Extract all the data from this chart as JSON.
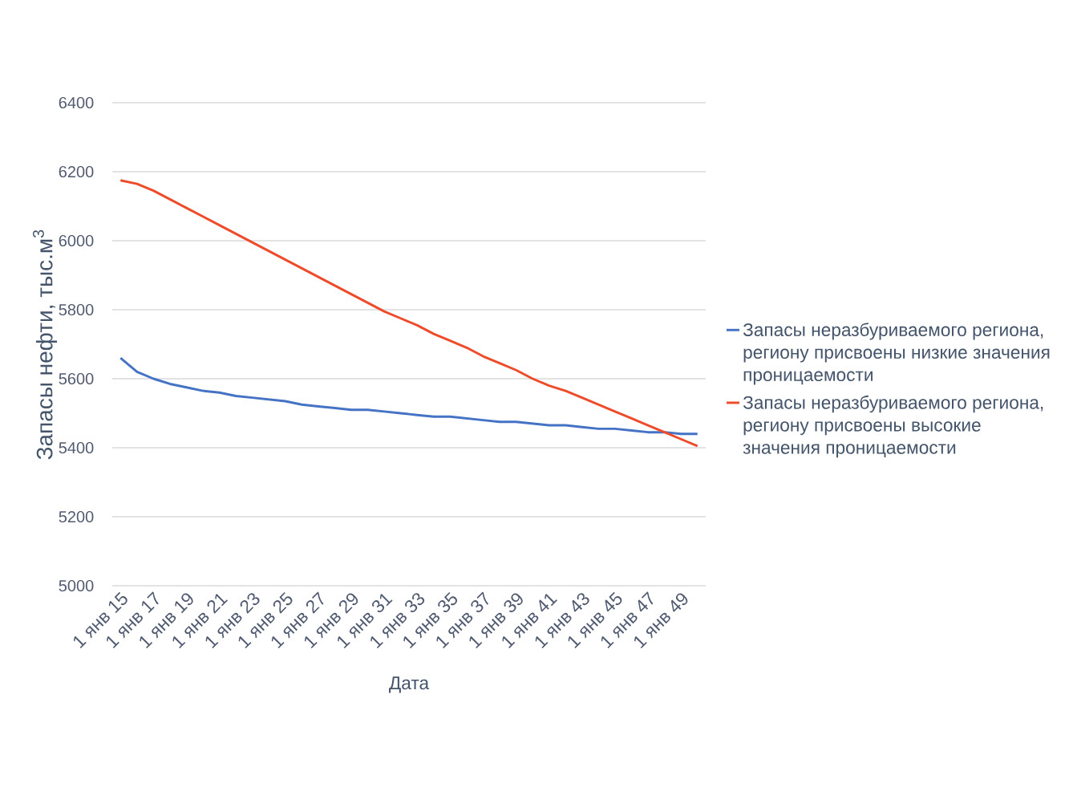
{
  "chart_data": {
    "type": "line",
    "xlabel": "Дата",
    "ylabel": "Запасы нефти, тыс.м$^{3}$",
    "categories": [
      "1 янв 15",
      null,
      "1 янв 17",
      null,
      "1 янв 19",
      null,
      "1 янв 21",
      null,
      "1 янв 23",
      null,
      "1 янв 25",
      null,
      "1 янв 27",
      null,
      "1 янв 29",
      null,
      "1 янв 31",
      null,
      "1 янв 33",
      null,
      "1 янв 35",
      null,
      "1 янв 37",
      null,
      "1 янв 39",
      null,
      "1 янв 41",
      null,
      "1 янв 43",
      null,
      "1 янв 45",
      null,
      "1 янв 47",
      null,
      "1 янв 49",
      null
    ],
    "series": [
      {
        "name": "Запасы неразбуриваемого региона, региону присвоены низкие значения проницаемости",
        "color": "#4472c4",
        "values": [
          5660,
          5620,
          5600,
          5585,
          5575,
          5565,
          5560,
          5550,
          5545,
          5540,
          5535,
          5525,
          5520,
          5515,
          5510,
          5510,
          5505,
          5500,
          5495,
          5490,
          5490,
          5485,
          5480,
          5475,
          5475,
          5470,
          5465,
          5465,
          5460,
          5455,
          5455,
          5450,
          5445,
          5445,
          5440,
          5440
        ]
      },
      {
        "name": "Запасы неразбуриваемого региона, региону присвоены высокие значения проницаемости",
        "color": "#ee4b2b",
        "values": [
          6175,
          6165,
          6145,
          6120,
          6095,
          6070,
          6045,
          6020,
          5995,
          5970,
          5945,
          5920,
          5895,
          5870,
          5845,
          5820,
          5795,
          5775,
          5755,
          5730,
          5710,
          5690,
          5665,
          5645,
          5625,
          5600,
          5580,
          5565,
          5545,
          5525,
          5505,
          5485,
          5465,
          5445,
          5425,
          5405
        ]
      }
    ],
    "ylim": [
      5000,
      6400
    ],
    "yticks": [
      5000,
      5200,
      5400,
      5600,
      5800,
      6000,
      6200,
      6400
    ],
    "grid": "y",
    "legend": "right",
    "line_style": "solid"
  }
}
